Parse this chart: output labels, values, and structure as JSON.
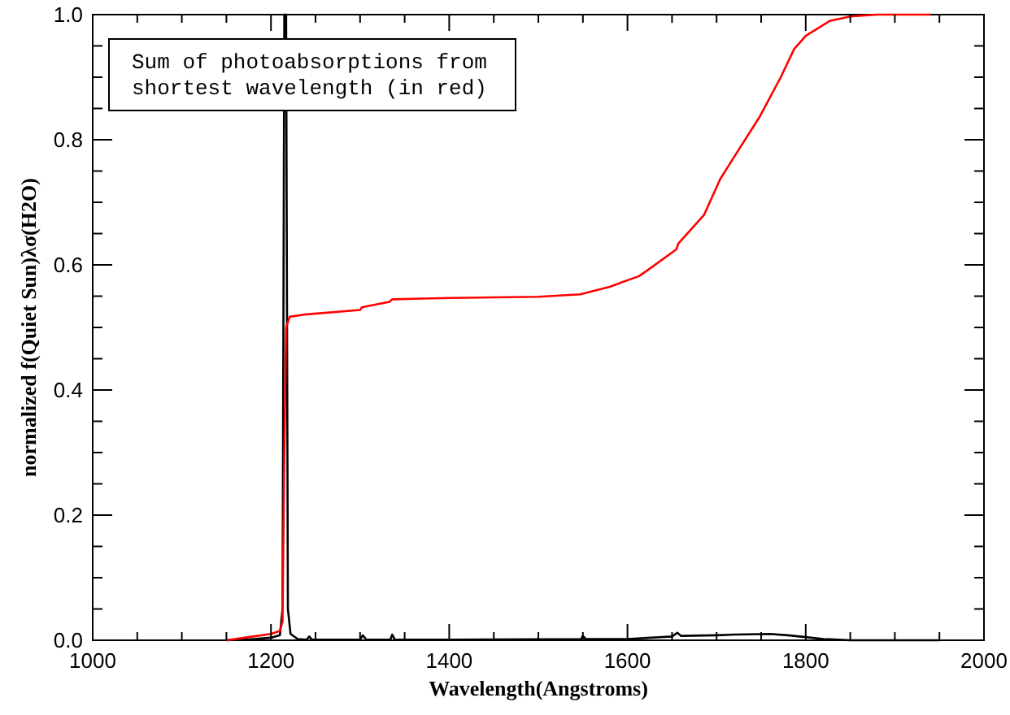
{
  "chart_data": {
    "type": "line",
    "xlabel": "Wavelength(Angstroms)",
    "ylabel": "normalized f(Quiet Sun)λσ(H2O)",
    "annotations": [
      "Sum of photoabsorptions from\nshortest wavelength (in red)"
    ],
    "xlim": [
      1000,
      2000
    ],
    "ylim": [
      0,
      1
    ],
    "xticks": [
      1000,
      {
        "value": 1050,
        "label": null
      },
      {
        "value": 1100,
        "label": null
      },
      {
        "value": 1150,
        "label": null
      },
      1200,
      {
        "value": 1250,
        "label": null
      },
      {
        "value": 1300,
        "label": null
      },
      {
        "value": 1350,
        "label": null
      },
      1400,
      {
        "value": 1450,
        "label": null
      },
      {
        "value": 1500,
        "label": null
      },
      {
        "value": 1550,
        "label": null
      },
      1600,
      {
        "value": 1650,
        "label": null
      },
      {
        "value": 1700,
        "label": null
      },
      {
        "value": 1750,
        "label": null
      },
      1800,
      {
        "value": 1850,
        "label": null
      },
      {
        "value": 1900,
        "label": null
      },
      {
        "value": 1950,
        "label": null
      },
      2000
    ],
    "yticks": [
      {
        "value": 0,
        "label": "0.0"
      },
      {
        "value": 0.05,
        "label": null
      },
      {
        "value": 0.1,
        "label": null
      },
      {
        "value": 0.15,
        "label": null
      },
      {
        "value": 0.2,
        "label": "0.2"
      },
      {
        "value": 0.25,
        "label": null
      },
      {
        "value": 0.3,
        "label": null
      },
      {
        "value": 0.35,
        "label": null
      },
      {
        "value": 0.4,
        "label": "0.4"
      },
      {
        "value": 0.45,
        "label": null
      },
      {
        "value": 0.5,
        "label": null
      },
      {
        "value": 0.55,
        "label": null
      },
      {
        "value": 0.6,
        "label": "0.6"
      },
      {
        "value": 0.65,
        "label": null
      },
      {
        "value": 0.7,
        "label": null
      },
      {
        "value": 0.75,
        "label": null
      },
      {
        "value": 0.8,
        "label": "0.8"
      },
      {
        "value": 0.85,
        "label": null
      },
      {
        "value": 0.9,
        "label": null
      },
      {
        "value": 0.95,
        "label": null
      },
      {
        "value": 1,
        "label": "1.0"
      }
    ],
    "grid": false,
    "marker": "none",
    "line_style": "solid",
    "series": [
      {
        "color": "#000000",
        "x": [
          1150,
          1180,
          1200,
          1210,
          1213,
          1215,
          1217,
          1219,
          1222,
          1230,
          1240,
          1243,
          1246,
          1300,
          1303,
          1307,
          1334,
          1336,
          1339,
          1400,
          1548,
          1550,
          1553,
          1600,
          1650,
          1656,
          1660,
          1700,
          1720,
          1760,
          1780,
          1800,
          1820,
          1850,
          1950
        ],
        "values": [
          0,
          0.002,
          0.004,
          0.008,
          0.05,
          1,
          1,
          0.05,
          0.01,
          0.002,
          0.001,
          0.006,
          0.001,
          0.001,
          0.008,
          0.001,
          0.001,
          0.009,
          0.001,
          0.001,
          0.002,
          0.007,
          0.002,
          0.002,
          0.006,
          0.012,
          0.007,
          0.008,
          0.009,
          0.01,
          0.008,
          0.005,
          0.002,
          0,
          0
        ]
      },
      {
        "color": "#ff0000",
        "x": [
          1150,
          1175,
          1200,
          1210,
          1213,
          1215,
          1217,
          1221,
          1240,
          1300,
          1302,
          1305,
          1333,
          1336,
          1400,
          1500,
          1547,
          1580,
          1613,
          1626,
          1655,
          1657,
          1686,
          1704,
          1723,
          1748,
          1772,
          1787,
          1800,
          1827,
          1850,
          1880,
          1940
        ],
        "values": [
          0,
          0.005,
          0.01,
          0.015,
          0.03,
          0.3,
          0.5,
          0.517,
          0.521,
          0.528,
          0.532,
          0.533,
          0.541,
          0.545,
          0.547,
          0.549,
          0.553,
          0.565,
          0.582,
          0.595,
          0.625,
          0.634,
          0.68,
          0.737,
          0.78,
          0.836,
          0.9,
          0.945,
          0.966,
          0.99,
          0.997,
          1,
          1
        ]
      }
    ]
  }
}
